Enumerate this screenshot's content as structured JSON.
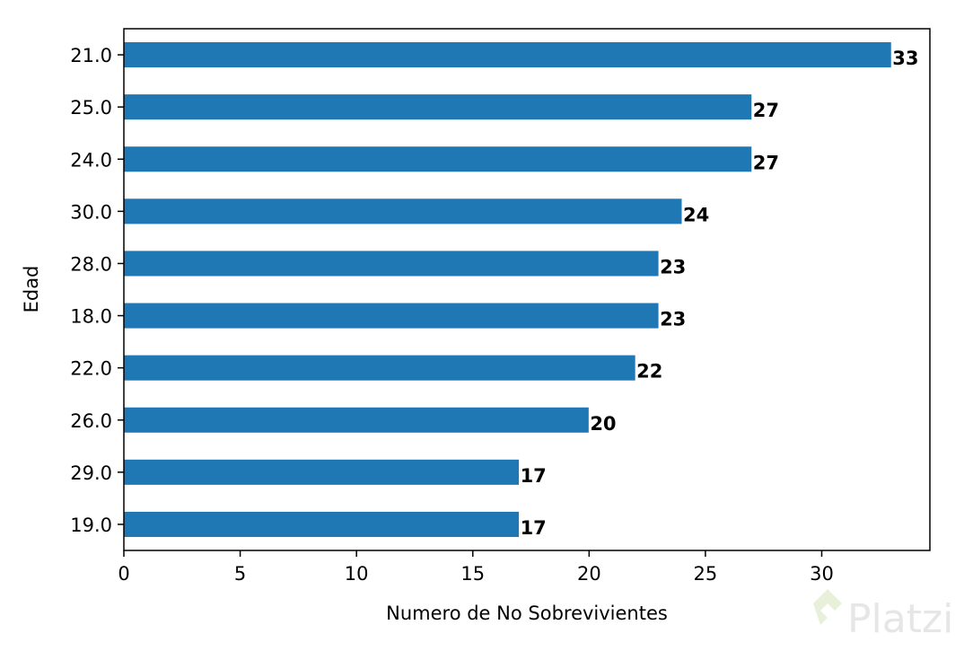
{
  "chart_data": {
    "type": "bar",
    "orientation": "horizontal",
    "categories": [
      "21.0",
      "25.0",
      "24.0",
      "30.0",
      "28.0",
      "18.0",
      "22.0",
      "26.0",
      "29.0",
      "19.0"
    ],
    "values": [
      33,
      27,
      27,
      24,
      23,
      23,
      22,
      20,
      17,
      17
    ],
    "xlabel": "Numero de No Sobrevivientes",
    "ylabel": "Edad",
    "xlim": [
      0,
      34.65
    ],
    "xticks": [
      0,
      5,
      10,
      15,
      20,
      25,
      30
    ],
    "grid": false,
    "bar_color": "#1f77b4",
    "data_labels": true
  },
  "watermark": {
    "text": "Platzi",
    "color": "#e6e6e6"
  }
}
